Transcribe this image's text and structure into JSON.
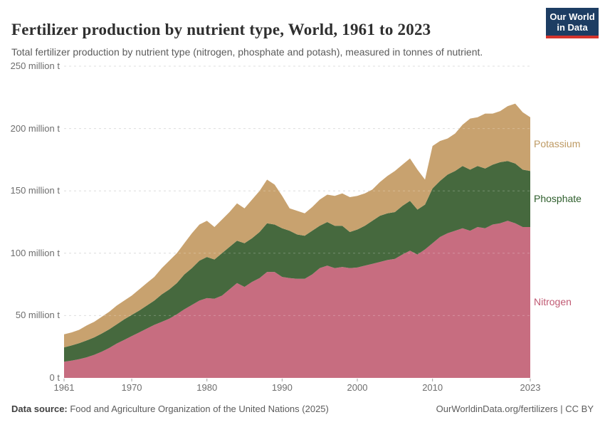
{
  "header": {
    "title": "Fertilizer production by nutrient type, World, 1961 to 2023",
    "subtitle": "Total fertilizer production by nutrient type (nitrogen, phosphate and potash), measured in tonnes of nutrient.",
    "logo_line1": "Our World",
    "logo_line2": "in Data",
    "logo_bg_color": "#1d3d63",
    "logo_bar_color": "#d5342c"
  },
  "footer": {
    "source_label": "Data source:",
    "source_value": " Food and Agriculture Organization of the United Nations (2025)",
    "link_text": "OurWorldinData.org/fertilizers",
    "license_text": " | CC BY"
  },
  "axis_colors": {
    "grid": "#d4d4d4",
    "grid_over_area": "rgba(255,255,255,0.25)",
    "tick": "#a3a3a3",
    "tick_text": "#6e6e6e"
  },
  "chart_data": {
    "type": "area",
    "stacked": true,
    "title": "Fertilizer production by nutrient type, World, 1961 to 2023",
    "xlabel": "",
    "ylabel": "",
    "ylim": [
      0,
      250
    ],
    "xlim": [
      1961,
      2023
    ],
    "grid": true,
    "legend_position": "right-of-plot",
    "years": [
      1961,
      1962,
      1963,
      1964,
      1965,
      1966,
      1967,
      1968,
      1969,
      1970,
      1971,
      1972,
      1973,
      1974,
      1975,
      1976,
      1977,
      1978,
      1979,
      1980,
      1981,
      1982,
      1983,
      1984,
      1985,
      1986,
      1987,
      1988,
      1989,
      1990,
      1991,
      1992,
      1993,
      1994,
      1995,
      1996,
      1997,
      1998,
      1999,
      2000,
      2001,
      2002,
      2003,
      2004,
      2005,
      2006,
      2007,
      2008,
      2009,
      2010,
      2011,
      2012,
      2013,
      2014,
      2015,
      2016,
      2017,
      2018,
      2019,
      2020,
      2021,
      2022,
      2023
    ],
    "unit": "million tonnes of nutrient",
    "series": [
      {
        "name": "Nitrogen",
        "color": "#c76d80",
        "label_color": "#c05a73",
        "values": [
          13,
          13.8,
          15,
          16.5,
          18.5,
          21,
          24,
          27.5,
          30.5,
          33.5,
          36.5,
          39.5,
          42.5,
          45,
          47.5,
          51,
          55,
          58.5,
          62,
          64,
          63.5,
          66,
          71,
          76,
          73,
          77,
          80,
          85,
          85,
          81,
          80,
          79.5,
          79.5,
          83,
          88,
          90,
          88,
          89,
          88,
          88.5,
          90,
          91.5,
          93,
          94.5,
          95.5,
          99,
          102,
          99,
          103,
          108,
          113,
          116,
          118,
          120,
          118,
          121,
          120,
          123,
          124,
          126,
          124,
          121,
          121
        ]
      },
      {
        "name": "Phosphate",
        "color": "#46693e",
        "label_color": "#2e5e2c",
        "values": [
          11.5,
          12.2,
          12.8,
          13.5,
          14,
          14.5,
          15,
          15.5,
          16.5,
          17,
          17.5,
          18.5,
          19.5,
          22,
          23.5,
          25,
          28,
          29.5,
          32,
          33,
          31.5,
          34,
          34,
          34,
          35,
          35,
          37,
          39,
          38,
          39,
          38,
          35.5,
          34.5,
          35,
          34,
          35,
          34,
          33,
          29,
          30.5,
          32,
          34.5,
          37,
          37.5,
          37.5,
          39,
          40,
          36,
          36,
          44,
          45,
          47,
          48,
          50,
          49,
          49,
          48,
          48,
          49,
          48,
          48,
          46,
          45
        ]
      },
      {
        "name": "Potassium",
        "color": "#c8a26f",
        "label_color": "#bd9962",
        "values": [
          10.5,
          10.5,
          10.7,
          12,
          12.5,
          13.5,
          14,
          15,
          15,
          15.5,
          17,
          18,
          19,
          21,
          23,
          24,
          25,
          28,
          29,
          29,
          26,
          27,
          28,
          30,
          28,
          31,
          33,
          35,
          32,
          26,
          18,
          19,
          18,
          19,
          21,
          22,
          24,
          26,
          28,
          27,
          26,
          25,
          27,
          30,
          33,
          33,
          34,
          32,
          20,
          34,
          32,
          29,
          30,
          33,
          41,
          39,
          44,
          41,
          41,
          44,
          48,
          46,
          43
        ]
      }
    ],
    "yticks": [
      {
        "value": 0,
        "label": "0 t"
      },
      {
        "value": 50,
        "label": "50 million t"
      },
      {
        "value": 100,
        "label": "100 million t"
      },
      {
        "value": 150,
        "label": "150 million t"
      },
      {
        "value": 200,
        "label": "200 million t"
      },
      {
        "value": 250,
        "label": "250 million t"
      }
    ],
    "xticks": [
      {
        "value": 1961,
        "label": "1961"
      },
      {
        "value": 1970,
        "label": "1970"
      },
      {
        "value": 1980,
        "label": "1980"
      },
      {
        "value": 1990,
        "label": "1990"
      },
      {
        "value": 2000,
        "label": "2000"
      },
      {
        "value": 2010,
        "label": "2010"
      },
      {
        "value": 2023,
        "label": "2023"
      }
    ]
  }
}
